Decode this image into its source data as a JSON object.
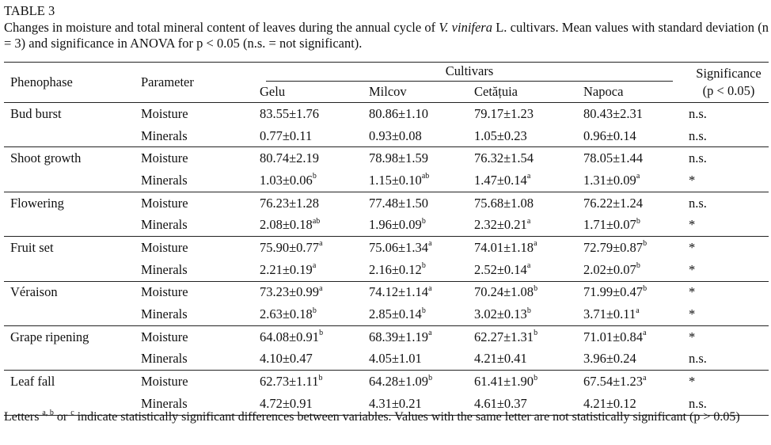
{
  "caption": {
    "label": "TABLE 3",
    "text_before": "Changes in moisture and total mineral content of leaves during the annual cycle of ",
    "species": "V. vinifera",
    "text_after": " L. cultivars. Mean values with standard deviation (n = 3) and significance in ANOVA for p < 0.05 (n.s. = not significant)."
  },
  "headers": {
    "phenophase": "Phenophase",
    "parameter": "Parameter",
    "cultivars": "Cultivars",
    "significance_line1": "Significance",
    "significance_line2": "(p < 0.05)",
    "cultivar_names": [
      "Gelu",
      "Milcov",
      "Cetățuia",
      "Napoca"
    ]
  },
  "groups": [
    {
      "phenophase": "Bud burst",
      "rows": [
        {
          "parameter": "Moisture",
          "values": [
            {
              "v": "83.55±1.76",
              "s": ""
            },
            {
              "v": "80.86±1.10",
              "s": ""
            },
            {
              "v": "79.17±1.23",
              "s": ""
            },
            {
              "v": "80.43±2.31",
              "s": ""
            }
          ],
          "sig": "n.s."
        },
        {
          "parameter": "Minerals",
          "values": [
            {
              "v": "0.77±0.11",
              "s": ""
            },
            {
              "v": "0.93±0.08",
              "s": ""
            },
            {
              "v": "1.05±0.23",
              "s": ""
            },
            {
              "v": "0.96±0.14",
              "s": ""
            }
          ],
          "sig": "n.s."
        }
      ]
    },
    {
      "phenophase": "Shoot growth",
      "rows": [
        {
          "parameter": "Moisture",
          "values": [
            {
              "v": "80.74±2.19",
              "s": ""
            },
            {
              "v": "78.98±1.59",
              "s": ""
            },
            {
              "v": "76.32±1.54",
              "s": ""
            },
            {
              "v": "78.05±1.44",
              "s": ""
            }
          ],
          "sig": "n.s."
        },
        {
          "parameter": "Minerals",
          "values": [
            {
              "v": "1.03±0.06",
              "s": "b"
            },
            {
              "v": "1.15±0.10",
              "s": "ab"
            },
            {
              "v": "1.47±0.14",
              "s": "a"
            },
            {
              "v": "1.31±0.09",
              "s": "a"
            }
          ],
          "sig": "*"
        }
      ]
    },
    {
      "phenophase": "Flowering",
      "rows": [
        {
          "parameter": "Moisture",
          "values": [
            {
              "v": "76.23±1.28",
              "s": ""
            },
            {
              "v": "77.48±1.50",
              "s": ""
            },
            {
              "v": "75.68±1.08",
              "s": ""
            },
            {
              "v": "76.22±1.24",
              "s": ""
            }
          ],
          "sig": "n.s."
        },
        {
          "parameter": "Minerals",
          "values": [
            {
              "v": "2.08±0.18",
              "s": "ab"
            },
            {
              "v": "1.96±0.09",
              "s": "b"
            },
            {
              "v": "2.32±0.21",
              "s": "a"
            },
            {
              "v": "1.71±0.07",
              "s": "b"
            }
          ],
          "sig": "*"
        }
      ]
    },
    {
      "phenophase": "Fruit set",
      "rows": [
        {
          "parameter": "Moisture",
          "values": [
            {
              "v": "75.90±0.77",
              "s": "a"
            },
            {
              "v": "75.06±1.34",
              "s": "a"
            },
            {
              "v": "74.01±1.18",
              "s": "a"
            },
            {
              "v": "72.79±0.87",
              "s": "b"
            }
          ],
          "sig": "*"
        },
        {
          "parameter": "Minerals",
          "values": [
            {
              "v": "2.21±0.19",
              "s": "a"
            },
            {
              "v": "2.16±0.12",
              "s": "b"
            },
            {
              "v": "2.52±0.14",
              "s": "a"
            },
            {
              "v": "2.02±0.07",
              "s": "b"
            }
          ],
          "sig": "*"
        }
      ]
    },
    {
      "phenophase": "Véraison",
      "rows": [
        {
          "parameter": "Moisture",
          "values": [
            {
              "v": "73.23±0.99",
              "s": "a"
            },
            {
              "v": "74.12±1.14",
              "s": "a"
            },
            {
              "v": "70.24±1.08",
              "s": "b"
            },
            {
              "v": "71.99±0.47",
              "s": "b"
            }
          ],
          "sig": "*"
        },
        {
          "parameter": "Minerals",
          "values": [
            {
              "v": "2.63±0.18",
              "s": "b"
            },
            {
              "v": "2.85±0.14",
              "s": "b"
            },
            {
              "v": "3.02±0.13",
              "s": "b"
            },
            {
              "v": "3.71±0.11",
              "s": "a"
            }
          ],
          "sig": "*"
        }
      ]
    },
    {
      "phenophase": "Grape ripening",
      "rows": [
        {
          "parameter": "Moisture",
          "values": [
            {
              "v": "64.08±0.91",
              "s": "b"
            },
            {
              "v": "68.39±1.19",
              "s": "a"
            },
            {
              "v": "62.27±1.31",
              "s": "b"
            },
            {
              "v": "71.01±0.84",
              "s": "a"
            }
          ],
          "sig": "*"
        },
        {
          "parameter": "Minerals",
          "values": [
            {
              "v": "4.10±0.47",
              "s": ""
            },
            {
              "v": "4.05±1.01",
              "s": ""
            },
            {
              "v": "4.21±0.41",
              "s": ""
            },
            {
              "v": "3.96±0.24",
              "s": ""
            }
          ],
          "sig": "n.s."
        }
      ]
    },
    {
      "phenophase": "Leaf fall",
      "rows": [
        {
          "parameter": "Moisture",
          "values": [
            {
              "v": "62.73±1.11",
              "s": "b"
            },
            {
              "v": "64.28±1.09",
              "s": "b"
            },
            {
              "v": "61.41±1.90",
              "s": "b"
            },
            {
              "v": "67.54±1.23",
              "s": "a"
            }
          ],
          "sig": "*"
        },
        {
          "parameter": "Minerals",
          "values": [
            {
              "v": "4.72±0.91",
              "s": ""
            },
            {
              "v": "4.31±0.21",
              "s": ""
            },
            {
              "v": "4.61±0.37",
              "s": ""
            },
            {
              "v": "4.21±0.12",
              "s": ""
            }
          ],
          "sig": "n.s."
        }
      ]
    }
  ],
  "footnote": {
    "part1": "Letters ",
    "sup": "a, b",
    "part2": " or ",
    "sup2": "c",
    "part3": " indicate statistically significant differences between variables. Values with the same letter are not statistically significant (p > 0.05)"
  }
}
